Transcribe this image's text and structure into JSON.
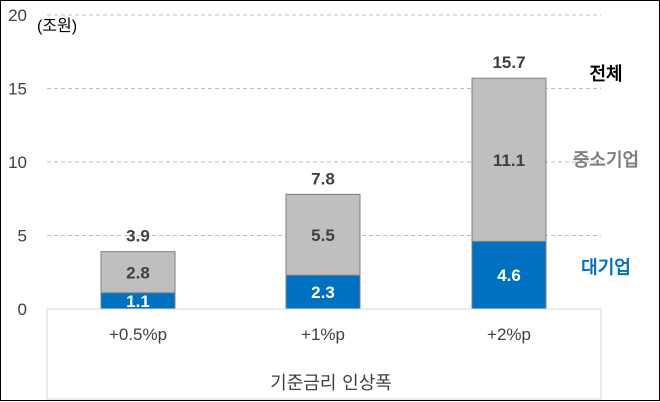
{
  "chart_data": {
    "type": "bar",
    "stacked": true,
    "unit_label": "(조원)",
    "xlabel": "기준금리 인상폭",
    "ylabel": "",
    "ylim": [
      0,
      20
    ],
    "yticks": [
      "0",
      "5",
      "10",
      "15",
      "20"
    ],
    "grid": true,
    "categories": [
      "+0.5%p",
      "+1%p",
      "+2%p"
    ],
    "series": [
      {
        "name": "대기업",
        "values": [
          1.1,
          2.3,
          4.6
        ],
        "labels": [
          "1.1",
          "2.3",
          "4.6"
        ],
        "color": "#0070C0",
        "label_color": "#ffffff"
      },
      {
        "name": "중소기업",
        "values": [
          2.8,
          5.5,
          11.1
        ],
        "labels": [
          "2.8",
          "5.5",
          "11.1"
        ],
        "color": "#BFBFBF",
        "label_color": "#404040"
      }
    ],
    "totals": {
      "name": "전체",
      "values": [
        3.9,
        7.8,
        15.7
      ],
      "labels": [
        "3.9",
        "7.8",
        "15.7"
      ]
    },
    "legend_placement": "right, beside the last bar",
    "colors": {
      "total_legend": "#000000",
      "sme_legend": "#7F7F7F",
      "large_legend": "#0070C0"
    }
  }
}
